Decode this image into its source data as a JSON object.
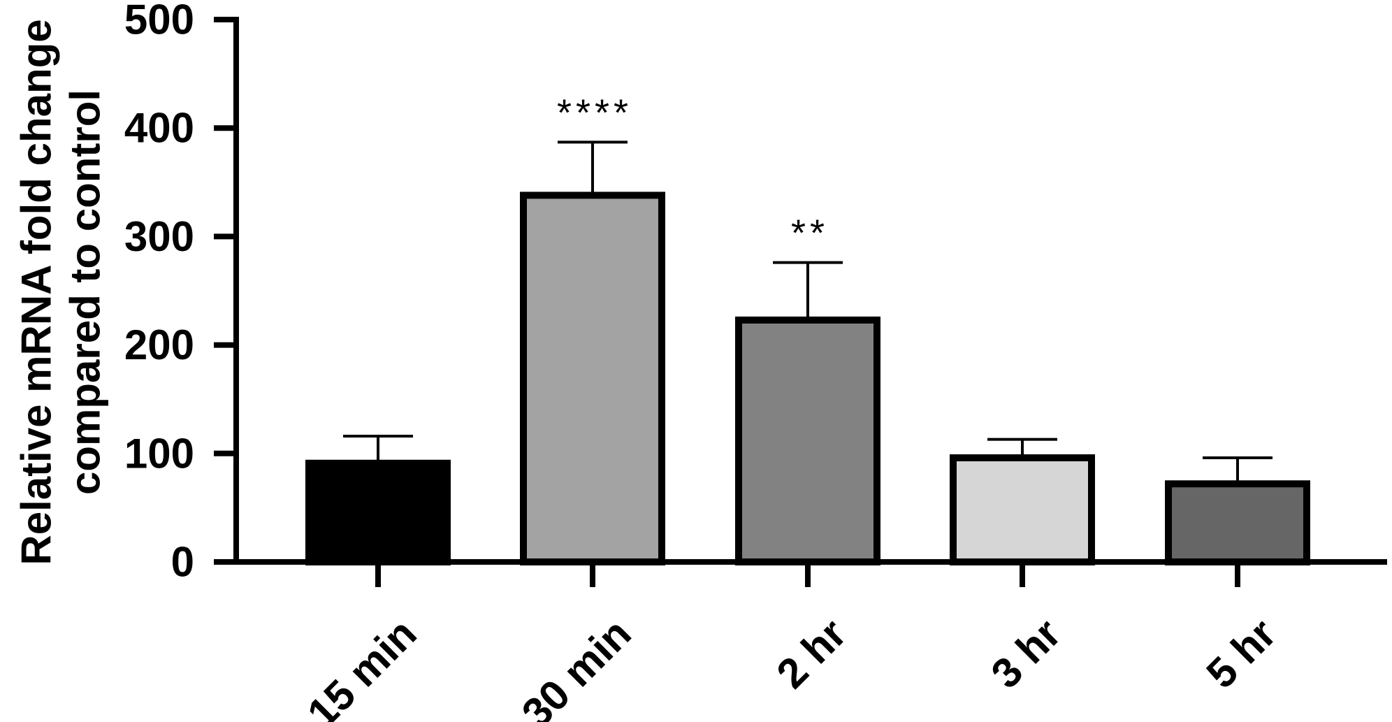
{
  "chart_data": {
    "type": "bar",
    "title": "",
    "xlabel": "",
    "ylabel_lines": [
      "Relative mRNA fold change",
      "compared to control"
    ],
    "ylim": [
      0,
      500
    ],
    "yticks": [
      "0",
      "100",
      "200",
      "300",
      "400",
      "500"
    ],
    "categories": [
      "15 min",
      "30 min",
      "2 hr",
      "3 hr",
      "5 hr"
    ],
    "values": [
      91,
      338,
      223,
      96,
      72
    ],
    "errors": [
      25,
      49,
      53,
      17,
      24
    ],
    "annotations": [
      "",
      "****",
      "**",
      "",
      ""
    ],
    "bar_colors": [
      "#000000",
      "#a3a3a3",
      "#828282",
      "#d6d6d6",
      "#666666"
    ],
    "grid": false,
    "legend": "none"
  }
}
